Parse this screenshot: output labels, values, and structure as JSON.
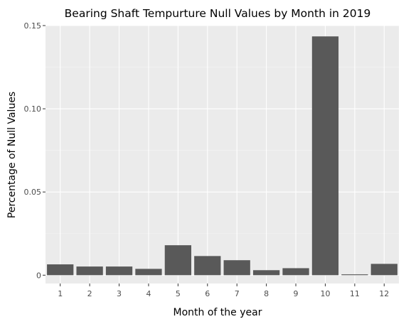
{
  "chart_data": {
    "type": "bar",
    "title": "Bearing Shaft Tempurture Null Values by Month in 2019",
    "xlabel": "Month of the year",
    "ylabel": "Percentage of Null Values",
    "categories": [
      "1",
      "2",
      "3",
      "4",
      "5",
      "6",
      "7",
      "8",
      "9",
      "10",
      "11",
      "12"
    ],
    "values": [
      0.0065,
      0.0052,
      0.0052,
      0.0038,
      0.018,
      0.0115,
      0.009,
      0.003,
      0.0042,
      0.1435,
      0.0005,
      0.0068
    ],
    "ylim": [
      -0.005,
      0.15
    ],
    "yticks": [
      0,
      0.05,
      0.1,
      0.15
    ],
    "ytick_labels": [
      "0",
      "0.05",
      "0.10",
      "0.15"
    ],
    "grid": true,
    "colors": {
      "bar": "#595959",
      "panel": "#ebebeb",
      "grid_major": "#ffffff",
      "grid_minor": "#f5f5f5"
    }
  }
}
